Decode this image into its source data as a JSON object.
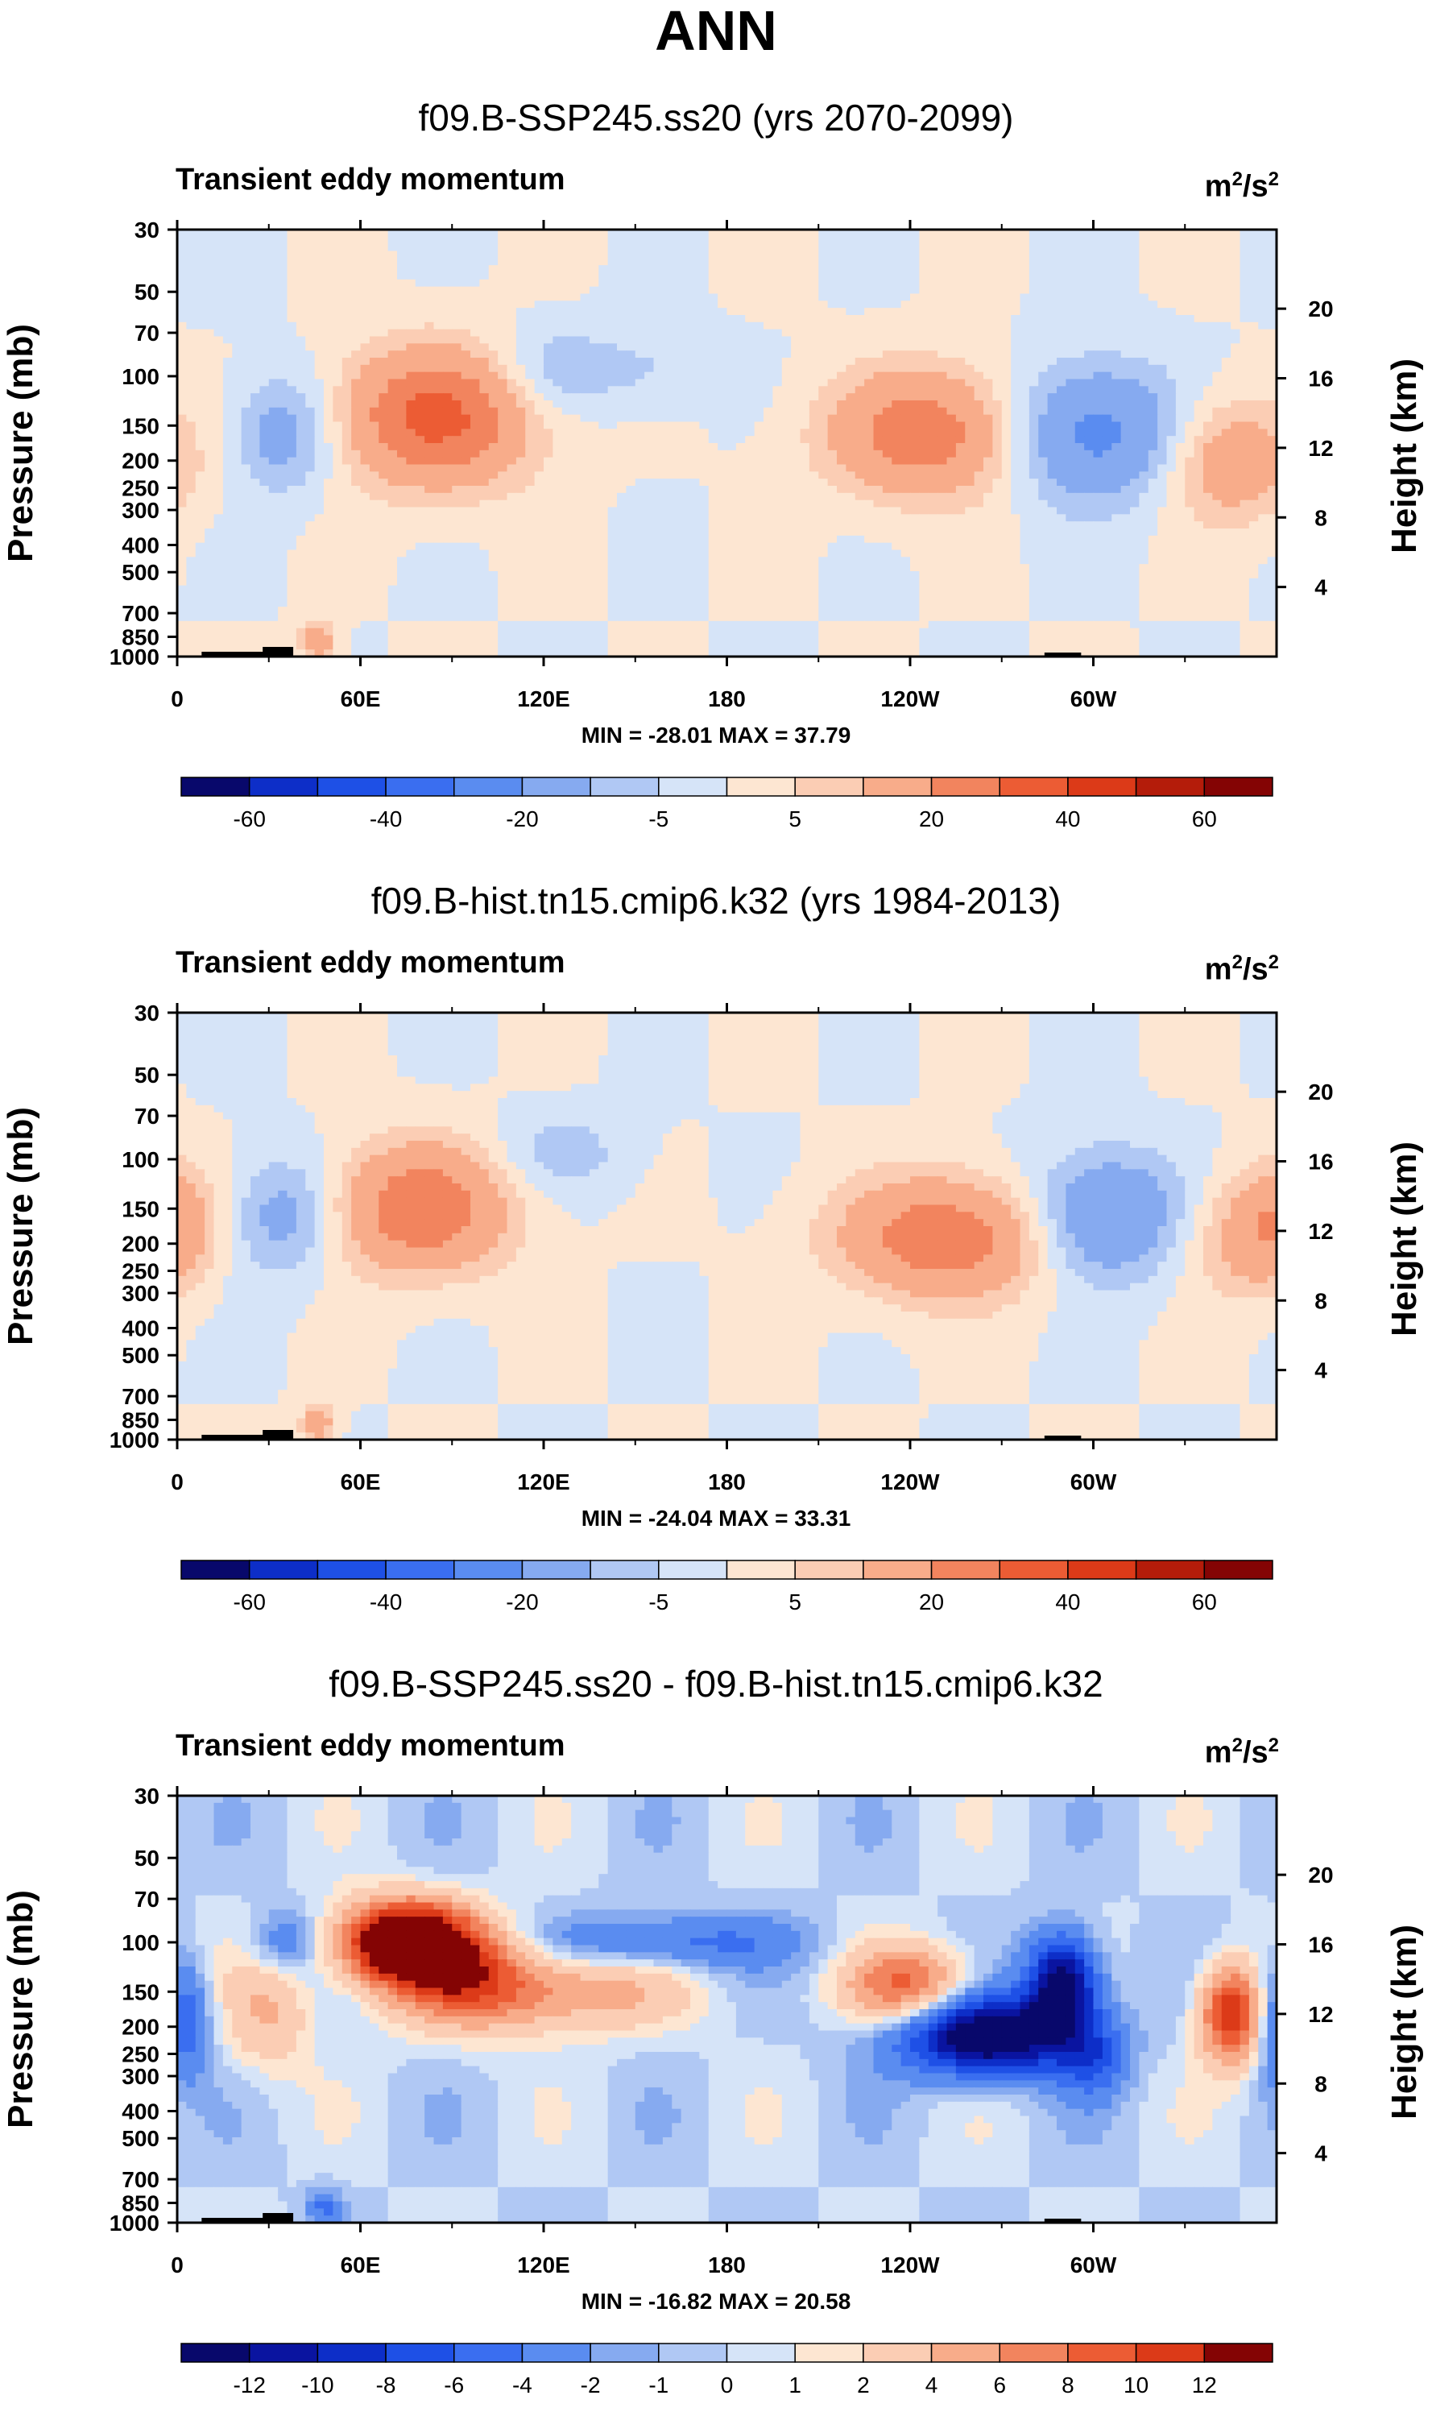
{
  "figure_title": "ANN",
  "panels": [
    {
      "run_title": "f09.B-SSP245.ss20 (yrs 2070-2099)",
      "variable": "Transient eddy momentum",
      "units_base": "m",
      "units_sup1": "2",
      "units_mid": "/s",
      "units_sup2": "2",
      "minmax_text": "MIN = -28.01  MAX =  37.79"
    },
    {
      "run_title": "f09.B-hist.tn15.cmip6.k32 (yrs 1984-2013)",
      "variable": "Transient eddy momentum",
      "units_base": "m",
      "units_sup1": "2",
      "units_mid": "/s",
      "units_sup2": "2",
      "minmax_text": "MIN = -24.04  MAX =  33.31"
    },
    {
      "run_title": "f09.B-SSP245.ss20 - f09.B-hist.tn15.cmip6.k32",
      "variable": "Transient eddy momentum",
      "units_base": "m",
      "units_sup1": "2",
      "units_mid": "/s",
      "units_sup2": "2",
      "minmax_text": "MIN = -16.82  MAX =  20.58"
    }
  ],
  "chart_data": [
    {
      "type": "heatmap",
      "title": "f09.B-SSP245.ss20 (yrs 2070-2099)",
      "subtitle": "Transient eddy momentum",
      "units": "m2/s2",
      "xlabel": "",
      "ylabel": "Pressure (mb)",
      "y2label": "Height (km)",
      "x_ticks": [
        "0",
        "60E",
        "120E",
        "180",
        "120W",
        "60W"
      ],
      "y_ticks": [
        "30",
        "50",
        "70",
        "100",
        "150",
        "200",
        "250",
        "300",
        "400",
        "500",
        "700",
        "850",
        "1000"
      ],
      "y2_ticks": [
        "20",
        "16",
        "12",
        "8",
        "4"
      ],
      "min": -28.01,
      "max": 37.79,
      "colorbar_labels": [
        "-60",
        "-40",
        "-20",
        "-5",
        "5",
        "20",
        "40",
        "60"
      ],
      "features": [
        {
          "lon": 85,
          "p": 140,
          "value": 33,
          "spread_lon": 22,
          "spread_logp": 0.17
        },
        {
          "lon": 35,
          "p": 160,
          "value": -15,
          "spread_lon": 12,
          "spread_logp": 0.15
        },
        {
          "lon": 245,
          "p": 160,
          "value": 27,
          "spread_lon": 22,
          "spread_logp": 0.16
        },
        {
          "lon": 300,
          "p": 160,
          "value": -24,
          "spread_lon": 20,
          "spread_logp": 0.17
        },
        {
          "lon": 345,
          "p": 200,
          "value": 18,
          "spread_lon": 15,
          "spread_logp": 0.15
        },
        {
          "lon": 120,
          "p": 95,
          "value": -8,
          "spread_lon": 14,
          "spread_logp": 0.12
        },
        {
          "lon": 150,
          "p": 95,
          "value": -6,
          "spread_lon": 20,
          "spread_logp": 0.1
        },
        {
          "lon": 46,
          "p": 880,
          "value": 18,
          "spread_lon": 4,
          "spread_logp": 0.05
        }
      ]
    },
    {
      "type": "heatmap",
      "title": "f09.B-hist.tn15.cmip6.k32 (yrs 1984-2013)",
      "subtitle": "Transient eddy momentum",
      "units": "m2/s2",
      "xlabel": "",
      "ylabel": "Pressure (mb)",
      "y2label": "Height (km)",
      "x_ticks": [
        "0",
        "60E",
        "120E",
        "180",
        "120W",
        "60W"
      ],
      "y_ticks": [
        "30",
        "50",
        "70",
        "100",
        "150",
        "200",
        "250",
        "300",
        "400",
        "500",
        "700",
        "850",
        "1000"
      ],
      "y2_ticks": [
        "20",
        "16",
        "12",
        "8",
        "4"
      ],
      "min": -24.04,
      "max": 33.31,
      "colorbar_labels": [
        "-60",
        "-40",
        "-20",
        "-5",
        "5",
        "20",
        "40",
        "60"
      ],
      "features": [
        {
          "lon": 80,
          "p": 150,
          "value": 28,
          "spread_lon": 20,
          "spread_logp": 0.16
        },
        {
          "lon": 35,
          "p": 160,
          "value": -14,
          "spread_lon": 12,
          "spread_logp": 0.15
        },
        {
          "lon": 252,
          "p": 190,
          "value": 28,
          "spread_lon": 24,
          "spread_logp": 0.15
        },
        {
          "lon": 303,
          "p": 160,
          "value": -22,
          "spread_lon": 18,
          "spread_logp": 0.16
        },
        {
          "lon": 350,
          "p": 190,
          "value": 14,
          "spread_lon": 14,
          "spread_logp": 0.15
        },
        {
          "lon": 125,
          "p": 95,
          "value": -8,
          "spread_lon": 16,
          "spread_logp": 0.1
        },
        {
          "lon": 0,
          "p": 160,
          "value": 10,
          "spread_lon": 8,
          "spread_logp": 0.15
        },
        {
          "lon": 46,
          "p": 880,
          "value": 16,
          "spread_lon": 4,
          "spread_logp": 0.05
        }
      ]
    },
    {
      "type": "heatmap",
      "title": "f09.B-SSP245.ss20 - f09.B-hist.tn15.cmip6.k32",
      "subtitle": "Transient eddy momentum",
      "units": "m2/s2",
      "xlabel": "",
      "ylabel": "Pressure (mb)",
      "y2label": "Height (km)",
      "x_ticks": [
        "0",
        "60E",
        "120E",
        "180",
        "120W",
        "60W"
      ],
      "y_ticks": [
        "30",
        "50",
        "70",
        "100",
        "150",
        "200",
        "250",
        "300",
        "400",
        "500",
        "700",
        "850",
        "1000"
      ],
      "y2_ticks": [
        "20",
        "16",
        "12",
        "8",
        "4"
      ],
      "min": -16.82,
      "max": 20.58,
      "colorbar_labels": [
        "-12",
        "-10",
        "-8",
        "-6",
        "-4",
        "-2",
        "-1",
        "0",
        "1",
        "2",
        "4",
        "6",
        "8",
        "10",
        "12"
      ],
      "features": [
        {
          "lon": 75,
          "p": 100,
          "value": 19,
          "spread_lon": 15,
          "spread_logp": 0.1
        },
        {
          "lon": 95,
          "p": 135,
          "value": 8,
          "spread_lon": 18,
          "spread_logp": 0.12
        },
        {
          "lon": 130,
          "p": 150,
          "value": 5,
          "spread_lon": 25,
          "spread_logp": 0.1
        },
        {
          "lon": 240,
          "p": 145,
          "value": 9,
          "spread_lon": 14,
          "spread_logp": 0.1
        },
        {
          "lon": 345,
          "p": 180,
          "value": 12,
          "spread_lon": 7,
          "spread_logp": 0.12
        },
        {
          "lon": 265,
          "p": 215,
          "value": -16,
          "spread_lon": 20,
          "spread_logp": 0.1
        },
        {
          "lon": 290,
          "p": 140,
          "value": -14,
          "spread_lon": 8,
          "spread_logp": 0.12
        },
        {
          "lon": 160,
          "p": 100,
          "value": -5,
          "spread_lon": 30,
          "spread_logp": 0.07
        },
        {
          "lon": 2,
          "p": 190,
          "value": -6,
          "spread_lon": 6,
          "spread_logp": 0.15
        },
        {
          "lon": 35,
          "p": 100,
          "value": -4,
          "spread_lon": 8,
          "spread_logp": 0.08
        },
        {
          "lon": 30,
          "p": 180,
          "value": 4,
          "spread_lon": 10,
          "spread_logp": 0.15
        },
        {
          "lon": 300,
          "p": 260,
          "value": -5,
          "spread_lon": 8,
          "spread_logp": 0.1
        },
        {
          "lon": 48,
          "p": 880,
          "value": -4,
          "spread_lon": 4,
          "spread_logp": 0.05
        }
      ]
    }
  ],
  "colorbar_a_colors": [
    "#08086b",
    "#0d2ec8",
    "#1e50e6",
    "#3a6ef0",
    "#5a8cf0",
    "#86aaf0",
    "#b0c8f4",
    "#d6e4f8",
    "#fde6d2",
    "#fbcdb4",
    "#f8ac8a",
    "#f2845e",
    "#ec5c34",
    "#dc3a18",
    "#b41c0a",
    "#840404"
  ],
  "colorbar_b_colors": [
    "#08086b",
    "#0a14a0",
    "#0d2ec8",
    "#1e50e6",
    "#3a6ef0",
    "#5a8cf0",
    "#86aaf0",
    "#b0c8f4",
    "#d6e4f8",
    "#fde6d2",
    "#fbcdb4",
    "#f8ac8a",
    "#f2845e",
    "#ec5c34",
    "#dc3a18",
    "#840404"
  ]
}
